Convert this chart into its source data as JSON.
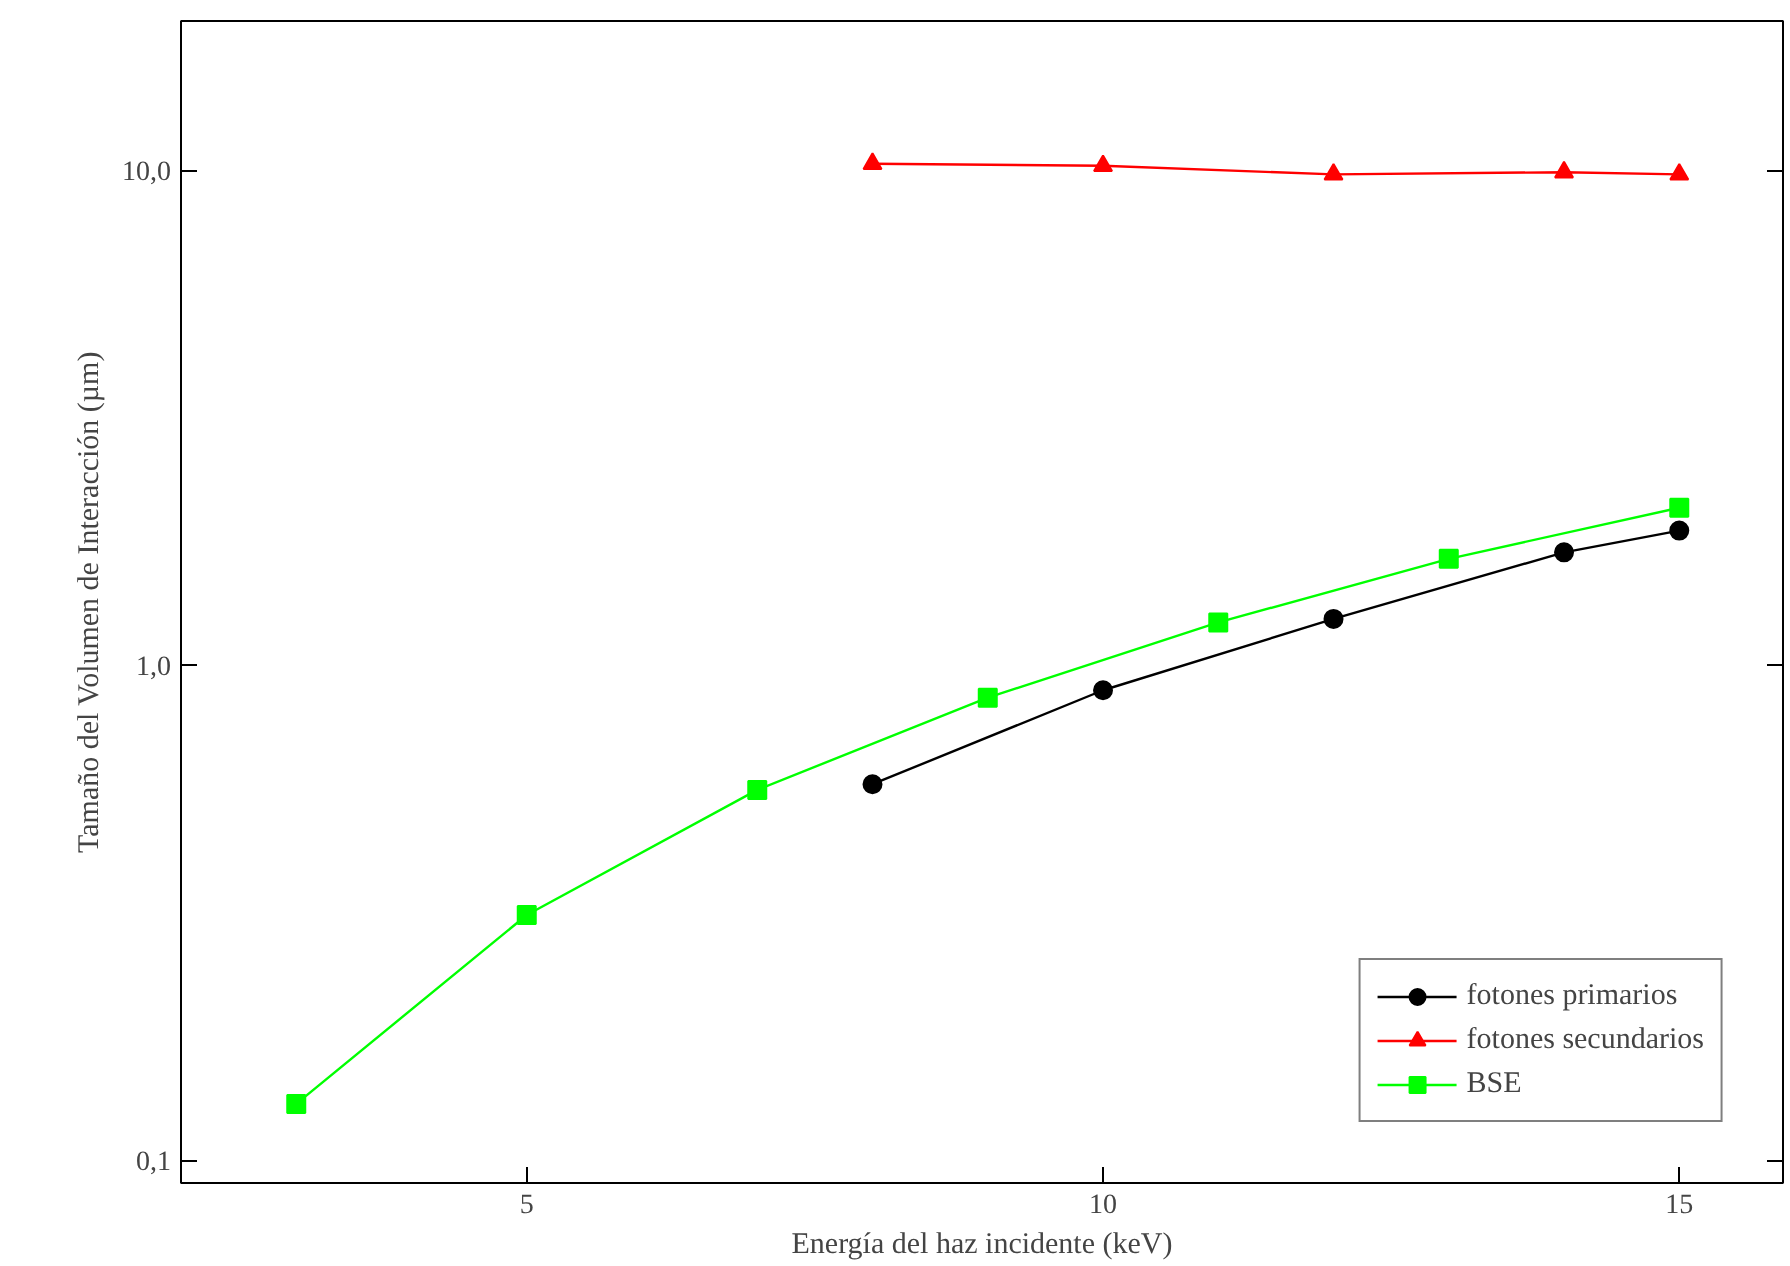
{
  "chart_data": {
    "type": "line",
    "xlabel": "Energía del haz incidente (keV)",
    "ylabel": "Tamaño del Volumen de Interacción (µm)",
    "log": "y",
    "xlim": [
      2,
      15.9
    ],
    "ylim": [
      0.09,
      20
    ],
    "xticks": [
      5,
      10,
      15
    ],
    "yticks": [
      {
        "value": 0.1,
        "label": "0,1"
      },
      {
        "value": 1,
        "label": "1,0"
      },
      {
        "value": 10,
        "label": "10,0"
      }
    ],
    "grid": false,
    "legend": "bottom right",
    "series": [
      {
        "name": "fotones primarios",
        "color": "#000000",
        "marker": "circle",
        "x": [
          8,
          10,
          12,
          14,
          15
        ],
        "values": [
          0.575,
          0.89,
          1.24,
          1.69,
          1.87
        ]
      },
      {
        "name": "fotones secundarios",
        "color": "#ff0000",
        "marker": "triangle",
        "x": [
          8,
          10,
          12,
          14,
          15
        ],
        "values": [
          10.3,
          10.2,
          9.8,
          9.9,
          9.8
        ]
      },
      {
        "name": "BSE",
        "color": "#00ff00",
        "marker": "square",
        "x": [
          3,
          5,
          7,
          9,
          11,
          13,
          15
        ],
        "values": [
          0.13,
          0.313,
          0.56,
          0.86,
          1.22,
          1.64,
          2.08
        ]
      }
    ]
  }
}
